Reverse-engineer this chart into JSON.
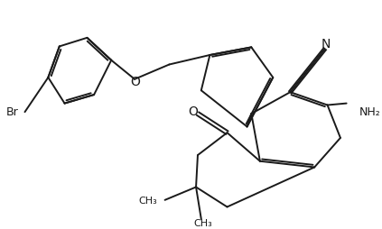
{
  "bg_color": "#ffffff",
  "line_color": "#1a1a1a",
  "line_width": 1.4,
  "font_size": 9,
  "figsize": [
    4.23,
    2.54
  ],
  "dpi": 100,
  "xlim": [
    0,
    10.0
  ],
  "ylim": [
    0,
    6.0
  ]
}
